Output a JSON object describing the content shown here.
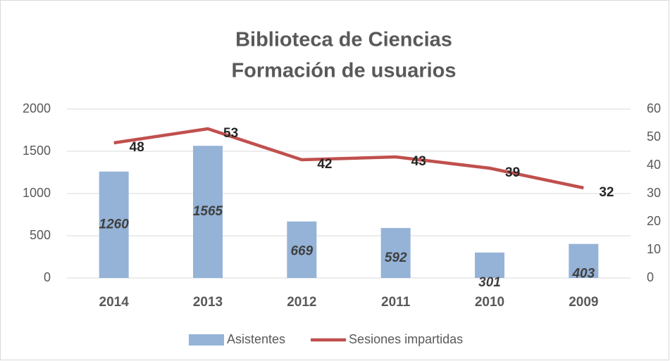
{
  "chart_data": {
    "type": "combo",
    "title": [
      "Biblioteca de Ciencias",
      "Formación de usuarios"
    ],
    "categories": [
      "2014",
      "2013",
      "2012",
      "2011",
      "2010",
      "2009"
    ],
    "series": [
      {
        "name": "Asistentes",
        "type": "bar",
        "color": "#95b3d7",
        "values": [
          1260,
          1565,
          669,
          592,
          301,
          403
        ]
      },
      {
        "name": "Sesiones impartidas",
        "type": "line",
        "axis": "y2",
        "color": "#c0504d",
        "values": [
          48,
          53,
          42,
          43,
          39,
          32
        ]
      }
    ],
    "ylim": [
      0,
      2000
    ],
    "yticks": [
      0,
      500,
      1000,
      1500,
      2000
    ],
    "y2lim": [
      0,
      60
    ],
    "y2ticks": [
      0,
      10,
      20,
      30,
      40,
      50,
      60
    ],
    "grid": true,
    "legend": "bottom"
  }
}
